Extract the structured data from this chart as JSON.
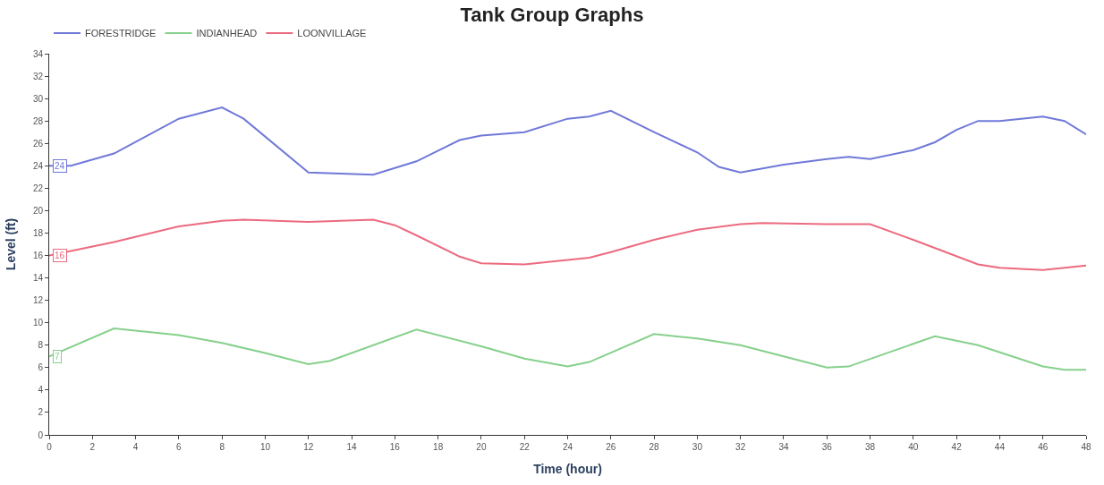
{
  "chart_data": {
    "type": "line",
    "title": "Tank Group Graphs",
    "xlabel": "Time (hour)",
    "ylabel": "Level (ft)",
    "xlim": [
      0,
      48
    ],
    "xticks": [
      0,
      2,
      4,
      6,
      8,
      10,
      12,
      14,
      16,
      18,
      20,
      22,
      24,
      26,
      28,
      30,
      32,
      34,
      36,
      38,
      40,
      42,
      44,
      46,
      48
    ],
    "ylim": [
      0,
      34
    ],
    "yticks": [
      0,
      2,
      4,
      6,
      8,
      10,
      12,
      14,
      16,
      18,
      20,
      22,
      24,
      26,
      28,
      30,
      32,
      34
    ],
    "legend": "top left",
    "marker": "none",
    "line_style": "solid",
    "series": [
      {
        "name": "FORESTRIDGE",
        "color": "#6f79d8",
        "x": [
          0,
          1,
          3,
          6,
          8,
          9,
          12,
          15,
          17,
          19,
          20,
          22,
          24,
          25,
          26,
          28,
          30,
          31,
          32,
          34,
          36,
          37,
          38,
          40,
          41,
          42,
          43,
          44,
          46,
          47,
          48
        ],
        "values": [
          24,
          24,
          25.1,
          28.2,
          29.2,
          28.2,
          23.4,
          23.2,
          24.4,
          26.3,
          26.7,
          27.0,
          28.2,
          28.4,
          28.9,
          27.0,
          25.2,
          23.9,
          23.4,
          24.1,
          24.6,
          24.8,
          24.6,
          25.4,
          26.1,
          27.2,
          28.0,
          28.0,
          28.4,
          28.0,
          26.8
        ],
        "value_labels": [
          "24",
          null,
          null,
          null,
          null,
          null,
          null,
          null,
          null,
          null,
          null,
          null,
          null,
          null,
          null,
          null,
          null,
          null,
          null,
          null,
          null,
          null,
          null,
          null,
          null,
          null,
          null,
          null,
          null,
          null,
          null
        ]
      },
      {
        "name": "INDIANHEAD",
        "color": "#86d08c",
        "x": [
          0,
          3,
          6,
          8,
          10,
          12,
          13,
          17,
          20,
          22,
          24,
          25,
          28,
          30,
          32,
          34,
          36,
          37,
          41,
          43,
          46,
          47,
          48
        ],
        "values": [
          7,
          9.5,
          8.9,
          8.2,
          7.3,
          6.3,
          6.6,
          9.4,
          7.9,
          6.8,
          6.1,
          6.5,
          9.0,
          8.6,
          8.0,
          7.0,
          6.0,
          6.1,
          8.8,
          8.0,
          6.1,
          5.8,
          5.8
        ],
        "value_labels": [
          "7",
          null,
          null,
          null,
          null,
          null,
          null,
          null,
          null,
          null,
          null,
          null,
          null,
          null,
          null,
          null,
          null,
          null,
          null,
          null,
          null,
          null,
          null
        ]
      },
      {
        "name": "LOONVILLAGE",
        "color": "#ec6a7f",
        "x": [
          0,
          3,
          6,
          8,
          9,
          12,
          15,
          16,
          17,
          19,
          20,
          22,
          24,
          25,
          26,
          28,
          30,
          32,
          33,
          36,
          38,
          40,
          43,
          44,
          46,
          47,
          48
        ],
        "values": [
          16,
          17.2,
          18.6,
          19.1,
          19.2,
          19.0,
          19.2,
          18.7,
          17.8,
          15.9,
          15.3,
          15.2,
          15.6,
          15.8,
          16.3,
          17.4,
          18.3,
          18.8,
          18.9,
          18.8,
          18.8,
          17.4,
          15.2,
          14.9,
          14.7,
          14.9,
          15.1
        ],
        "value_labels": [
          "16",
          null,
          null,
          null,
          null,
          null,
          null,
          null,
          null,
          null,
          null,
          null,
          null,
          null,
          null,
          null,
          null,
          null,
          null,
          null,
          null,
          null,
          null,
          null,
          null,
          null,
          null
        ]
      }
    ]
  }
}
